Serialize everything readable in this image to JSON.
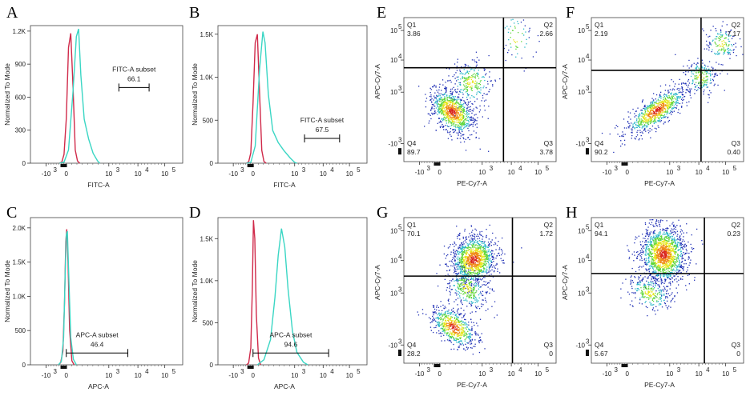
{
  "figure_panels": [
    "A",
    "B",
    "C",
    "D",
    "E",
    "F",
    "G",
    "H"
  ],
  "colors": {
    "control": "#d02a4a",
    "sample": "#3ad6c4",
    "gate": "#000000",
    "quad": "#000000"
  },
  "chart_data": [
    {
      "panel": "A",
      "type": "histogram",
      "xlabel": "FITC-A",
      "ylabel": "Normalized To Mode",
      "yticks": [
        "0",
        "300",
        "600",
        "900",
        "1.2K"
      ],
      "ymax": 1250,
      "xticks": [
        "-10",
        "0",
        "10",
        "10",
        "10"
      ],
      "xtick_exp": [
        "3",
        "",
        "3",
        "4",
        "5"
      ],
      "gate": {
        "name": "FITC-A subset",
        "value": "66.1",
        "from": 2.35,
        "to": 3.7
      },
      "series": [
        {
          "name": "control",
          "color": "#d02a4a",
          "points": [
            [
              -0.3,
              0
            ],
            [
              -0.2,
              10
            ],
            [
              -0.1,
              80
            ],
            [
              0.0,
              400
            ],
            [
              0.1,
              1050
            ],
            [
              0.2,
              1180
            ],
            [
              0.3,
              700
            ],
            [
              0.4,
              120
            ],
            [
              0.5,
              20
            ],
            [
              0.6,
              0
            ]
          ]
        },
        {
          "name": "sample",
          "color": "#3ad6c4",
          "points": [
            [
              -0.3,
              0
            ],
            [
              -0.1,
              10
            ],
            [
              0.1,
              120
            ],
            [
              0.3,
              650
            ],
            [
              0.45,
              1150
            ],
            [
              0.55,
              1220
            ],
            [
              0.65,
              800
            ],
            [
              0.8,
              400
            ],
            [
              1.0,
              220
            ],
            [
              1.2,
              90
            ],
            [
              1.4,
              20
            ],
            [
              1.5,
              0
            ]
          ]
        }
      ]
    },
    {
      "panel": "B",
      "type": "histogram",
      "xlabel": "FITC-A",
      "ylabel": "Normalized To Mode",
      "yticks": [
        "0",
        "500",
        "1.0K",
        "1.5K"
      ],
      "ymax": 1600,
      "xticks": [
        "-10",
        "0",
        "10",
        "10",
        "10"
      ],
      "xtick_exp": [
        "3",
        "",
        "3",
        "4",
        "5"
      ],
      "gate": {
        "name": "FITC-A subset",
        "value": "67.5",
        "from": 2.35,
        "to": 3.95
      },
      "series": [
        {
          "name": "control",
          "color": "#d02a4a",
          "points": [
            [
              -0.3,
              0
            ],
            [
              -0.2,
              15
            ],
            [
              -0.1,
              120
            ],
            [
              0.0,
              700
            ],
            [
              0.1,
              1400
            ],
            [
              0.2,
              1500
            ],
            [
              0.3,
              800
            ],
            [
              0.4,
              150
            ],
            [
              0.5,
              20
            ],
            [
              0.6,
              0
            ]
          ]
        },
        {
          "name": "sample",
          "color": "#3ad6c4",
          "points": [
            [
              -0.3,
              0
            ],
            [
              -0.1,
              10
            ],
            [
              0.1,
              200
            ],
            [
              0.3,
              1100
            ],
            [
              0.45,
              1530
            ],
            [
              0.55,
              1400
            ],
            [
              0.7,
              800
            ],
            [
              0.9,
              380
            ],
            [
              1.15,
              240
            ],
            [
              1.4,
              150
            ],
            [
              1.7,
              60
            ],
            [
              1.9,
              10
            ],
            [
              2.0,
              0
            ]
          ]
        }
      ]
    },
    {
      "panel": "C",
      "type": "histogram",
      "xlabel": "APC-A",
      "ylabel": "Normalized To Mode",
      "yticks": [
        "0",
        "500",
        "1.0K",
        "1.5K",
        "2.0K"
      ],
      "ymax": 2150,
      "xticks": [
        "-10",
        "0",
        "10",
        "10",
        "10"
      ],
      "xtick_exp": [
        "3",
        "",
        "3",
        "4",
        "5"
      ],
      "gate": {
        "name": "APC-A subset",
        "value": "46.4",
        "from": 0.0,
        "to": 2.75
      },
      "series": [
        {
          "name": "control",
          "color": "#d02a4a",
          "points": [
            [
              -0.35,
              0
            ],
            [
              -0.25,
              30
            ],
            [
              -0.15,
              200
            ],
            [
              -0.08,
              900
            ],
            [
              -0.02,
              1800
            ],
            [
              0.02,
              1980
            ],
            [
              0.08,
              1500
            ],
            [
              0.15,
              500
            ],
            [
              0.25,
              60
            ],
            [
              0.35,
              0
            ]
          ]
        },
        {
          "name": "sample",
          "color": "#3ad6c4",
          "points": [
            [
              -0.35,
              0
            ],
            [
              -0.22,
              50
            ],
            [
              -0.12,
              400
            ],
            [
              -0.05,
              1300
            ],
            [
              0.0,
              1900
            ],
            [
              0.05,
              1950
            ],
            [
              0.12,
              1200
            ],
            [
              0.2,
              400
            ],
            [
              0.32,
              80
            ],
            [
              0.45,
              0
            ]
          ]
        }
      ]
    },
    {
      "panel": "D",
      "type": "histogram",
      "xlabel": "APC-A",
      "ylabel": "Normalized To Mode",
      "yticks": [
        "0",
        "500",
        "1.0K",
        "1.5K"
      ],
      "ymax": 1750,
      "xticks": [
        "-10",
        "0",
        "10",
        "10",
        "10"
      ],
      "xtick_exp": [
        "3",
        "",
        "3",
        "4",
        "5"
      ],
      "gate": {
        "name": "APC-A subset",
        "value": "94.6",
        "from": 0.0,
        "to": 3.45
      },
      "series": [
        {
          "name": "control",
          "color": "#d02a4a",
          "points": [
            [
              -0.3,
              0
            ],
            [
              -0.2,
              20
            ],
            [
              -0.1,
              200
            ],
            [
              -0.03,
              900
            ],
            [
              0.02,
              1720
            ],
            [
              0.08,
              1500
            ],
            [
              0.15,
              600
            ],
            [
              0.25,
              80
            ],
            [
              0.35,
              0
            ]
          ]
        },
        {
          "name": "sample",
          "color": "#3ad6c4",
          "points": [
            [
              0.2,
              0
            ],
            [
              0.5,
              60
            ],
            [
              0.8,
              300
            ],
            [
              1.0,
              800
            ],
            [
              1.15,
              1300
            ],
            [
              1.3,
              1620
            ],
            [
              1.45,
              1400
            ],
            [
              1.6,
              900
            ],
            [
              1.8,
              400
            ],
            [
              2.0,
              150
            ],
            [
              2.3,
              30
            ],
            [
              2.5,
              0
            ]
          ]
        }
      ]
    },
    {
      "panel": "E",
      "type": "scatter",
      "xlabel": "PE-Cy7-A",
      "ylabel": "APC-Cy7-A",
      "xticks": [
        "-10",
        "0",
        "10",
        "10",
        "10"
      ],
      "xtick_exp": [
        "3",
        "",
        "3",
        "4",
        "5"
      ],
      "yticks": [
        "-10",
        "10",
        "10",
        "10"
      ],
      "ytick_exp": [
        "3",
        "3",
        "4",
        "5"
      ],
      "quad": {
        "x": 2.85,
        "y": 3.25
      },
      "quadrants": {
        "Q1": "3.86",
        "Q2": "2.66",
        "Q3": "3.78",
        "Q4": "89.7"
      },
      "clusters": [
        {
          "cx": 0.55,
          "cy": 1.55,
          "sx": 0.35,
          "sy": 0.55,
          "n": 900,
          "rot": 0.9
        },
        {
          "cx": 1.4,
          "cy": 2.7,
          "sx": 0.45,
          "sy": 0.45,
          "n": 260,
          "rot": 0.5
        },
        {
          "cx": 3.4,
          "cy": 4.4,
          "sx": 0.35,
          "sy": 0.55,
          "n": 60,
          "rot": 0.3
        }
      ]
    },
    {
      "panel": "F",
      "type": "scatter",
      "xlabel": "PE-Cy7-A",
      "ylabel": "APC-Cy7-A",
      "xticks": [
        "-10",
        "0",
        "10",
        "10",
        "10"
      ],
      "xtick_exp": [
        "3",
        "",
        "3",
        "4",
        "5"
      ],
      "yticks": [
        "-10",
        "10",
        "10",
        "10"
      ],
      "ytick_exp": [
        "3",
        "3",
        "4",
        "5"
      ],
      "quad": {
        "x": 3.3,
        "y": 3.15
      },
      "quadrants": {
        "Q1": "2.19",
        "Q2": "7.17",
        "Q3": "0.40",
        "Q4": "90.2"
      },
      "clusters": [
        {
          "cx": 1.3,
          "cy": 1.6,
          "sx": 0.75,
          "sy": 0.25,
          "n": 800,
          "rot": 0.55
        },
        {
          "cx": 3.25,
          "cy": 2.9,
          "sx": 0.35,
          "sy": 0.35,
          "n": 200,
          "rot": 0.4
        },
        {
          "cx": 4.2,
          "cy": 4.2,
          "sx": 0.35,
          "sy": 0.35,
          "n": 150,
          "rot": 0.2
        }
      ]
    },
    {
      "panel": "G",
      "type": "scatter",
      "xlabel": "PE-Cy7-A",
      "ylabel": "APC-Cy7-A",
      "xticks": [
        "-10",
        "0",
        "10",
        "10",
        "10"
      ],
      "xtick_exp": [
        "3",
        "",
        "3",
        "4",
        "5"
      ],
      "yticks": [
        "-10",
        "10",
        "10",
        "10"
      ],
      "ytick_exp": [
        "3",
        "3",
        "4",
        "5"
      ],
      "quad": {
        "x": 3.25,
        "y": 2.95
      },
      "quadrants": {
        "Q1": "70.1",
        "Q2": "1.72",
        "Q3": "0",
        "Q4": "28.2"
      },
      "clusters": [
        {
          "cx": 1.5,
          "cy": 3.6,
          "sx": 0.5,
          "sy": 0.45,
          "n": 1200,
          "rot": 0.4
        },
        {
          "cx": 0.6,
          "cy": 1.0,
          "sx": 0.3,
          "sy": 0.55,
          "n": 600,
          "rot": 1.0
        },
        {
          "cx": 1.2,
          "cy": 2.5,
          "sx": 0.35,
          "sy": 0.5,
          "n": 300,
          "rot": 0.9
        }
      ]
    },
    {
      "panel": "H",
      "type": "scatter",
      "xlabel": "PE-Cy7-A",
      "ylabel": "APC-Cy7-A",
      "xticks": [
        "-10",
        "0",
        "10",
        "10",
        "10"
      ],
      "xtick_exp": [
        "3",
        "",
        "3",
        "4",
        "5"
      ],
      "yticks": [
        "-10",
        "10",
        "10",
        "10"
      ],
      "ytick_exp": [
        "3",
        "3",
        "4",
        "5"
      ],
      "quad": {
        "x": 3.45,
        "y": 3.05
      },
      "quadrants": {
        "Q1": "94.1",
        "Q2": "0.23",
        "Q3": "0",
        "Q4": "5.67"
      },
      "clusters": [
        {
          "cx": 1.6,
          "cy": 3.8,
          "sx": 0.5,
          "sy": 0.55,
          "n": 1500,
          "rot": 0.2
        },
        {
          "cx": 1.0,
          "cy": 2.3,
          "sx": 0.3,
          "sy": 0.5,
          "n": 250,
          "rot": 1.2
        }
      ]
    }
  ]
}
